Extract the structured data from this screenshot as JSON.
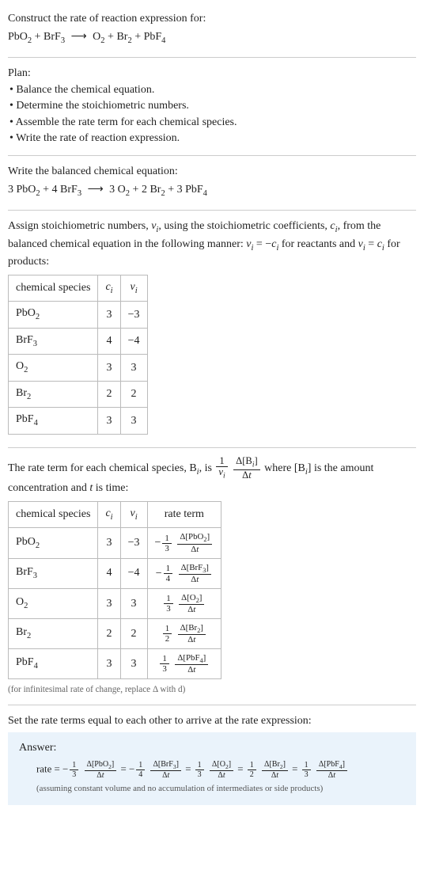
{
  "header": {
    "prompt": "Construct the rate of reaction expression for:",
    "unbalanced": {
      "lhs": [
        {
          "base": "PbO",
          "sub": "2"
        },
        {
          "base": "BrF",
          "sub": "3"
        }
      ],
      "rhs": [
        {
          "base": "O",
          "sub": "2"
        },
        {
          "base": "Br",
          "sub": "2"
        },
        {
          "base": "PbF",
          "sub": "4"
        }
      ]
    }
  },
  "plan": {
    "title": "Plan:",
    "items": [
      "Balance the chemical equation.",
      "Determine the stoichiometric numbers.",
      "Assemble the rate term for each chemical species.",
      "Write the rate of reaction expression."
    ]
  },
  "balanced": {
    "intro": "Write the balanced chemical equation:",
    "lhs": [
      {
        "coef": "3",
        "base": "PbO",
        "sub": "2"
      },
      {
        "coef": "4",
        "base": "BrF",
        "sub": "3"
      }
    ],
    "rhs": [
      {
        "coef": "3",
        "base": "O",
        "sub": "2"
      },
      {
        "coef": "2",
        "base": "Br",
        "sub": "2"
      },
      {
        "coef": "3",
        "base": "PbF",
        "sub": "4"
      }
    ]
  },
  "stoich": {
    "para_a": "Assign stoichiometric numbers, ",
    "nu_i": "ν",
    "para_b": ", using the stoichiometric coefficients, ",
    "c_i": "c",
    "para_c": ", from the balanced chemical equation in the following manner: ",
    "rel1": " = −",
    "para_d": " for reactants and ",
    "rel2": " = ",
    "para_e": " for products:",
    "headers": [
      "chemical species",
      "c",
      "ν"
    ],
    "rows": [
      {
        "sp_base": "PbO",
        "sp_sub": "2",
        "c": "3",
        "nu": "−3"
      },
      {
        "sp_base": "BrF",
        "sp_sub": "3",
        "c": "4",
        "nu": "−4"
      },
      {
        "sp_base": "O",
        "sp_sub": "2",
        "c": "3",
        "nu": "3"
      },
      {
        "sp_base": "Br",
        "sp_sub": "2",
        "c": "2",
        "nu": "2"
      },
      {
        "sp_base": "PbF",
        "sp_sub": "4",
        "c": "3",
        "nu": "3"
      }
    ]
  },
  "rateterm": {
    "para_a": "The rate term for each chemical species, B",
    "para_b": ", is ",
    "para_c": " where [B",
    "para_d": "] is the amount concentration and ",
    "tvar": "t",
    "para_e": " is time:",
    "headers": [
      "chemical species",
      "c",
      "ν",
      "rate term"
    ],
    "rows": [
      {
        "sp_base": "PbO",
        "sp_sub": "2",
        "c": "3",
        "nu": "−3",
        "sign": "−",
        "fnum": "1",
        "fden": "3",
        "dnum_base": "PbO",
        "dnum_sub": "2"
      },
      {
        "sp_base": "BrF",
        "sp_sub": "3",
        "c": "4",
        "nu": "−4",
        "sign": "−",
        "fnum": "1",
        "fden": "4",
        "dnum_base": "BrF",
        "dnum_sub": "3"
      },
      {
        "sp_base": "O",
        "sp_sub": "2",
        "c": "3",
        "nu": "3",
        "sign": "",
        "fnum": "1",
        "fden": "3",
        "dnum_base": "O",
        "dnum_sub": "2"
      },
      {
        "sp_base": "Br",
        "sp_sub": "2",
        "c": "2",
        "nu": "2",
        "sign": "",
        "fnum": "1",
        "fden": "2",
        "dnum_base": "Br",
        "dnum_sub": "2"
      },
      {
        "sp_base": "PbF",
        "sp_sub": "4",
        "c": "3",
        "nu": "3",
        "sign": "",
        "fnum": "1",
        "fden": "3",
        "dnum_base": "PbF",
        "dnum_sub": "4"
      }
    ],
    "footnote": "(for infinitesimal rate of change, replace Δ with d)"
  },
  "final": {
    "intro": "Set the rate terms equal to each other to arrive at the rate expression:",
    "answer_label": "Answer:",
    "rate_label": "rate = ",
    "terms": [
      {
        "sign": "−",
        "fnum": "1",
        "fden": "3",
        "sp_base": "PbO",
        "sp_sub": "2"
      },
      {
        "sign": "−",
        "fnum": "1",
        "fden": "4",
        "sp_base": "BrF",
        "sp_sub": "3"
      },
      {
        "sign": "",
        "fnum": "1",
        "fden": "3",
        "sp_base": "O",
        "sp_sub": "2"
      },
      {
        "sign": "",
        "fnum": "1",
        "fden": "2",
        "sp_base": "Br",
        "sp_sub": "2"
      },
      {
        "sign": "",
        "fnum": "1",
        "fden": "3",
        "sp_base": "PbF",
        "sp_sub": "4"
      }
    ],
    "note": "(assuming constant volume and no accumulation of intermediates or side products)"
  },
  "glyphs": {
    "arrow": "⟶",
    "delta": "Δ",
    "i": "i",
    "dot": "• "
  }
}
